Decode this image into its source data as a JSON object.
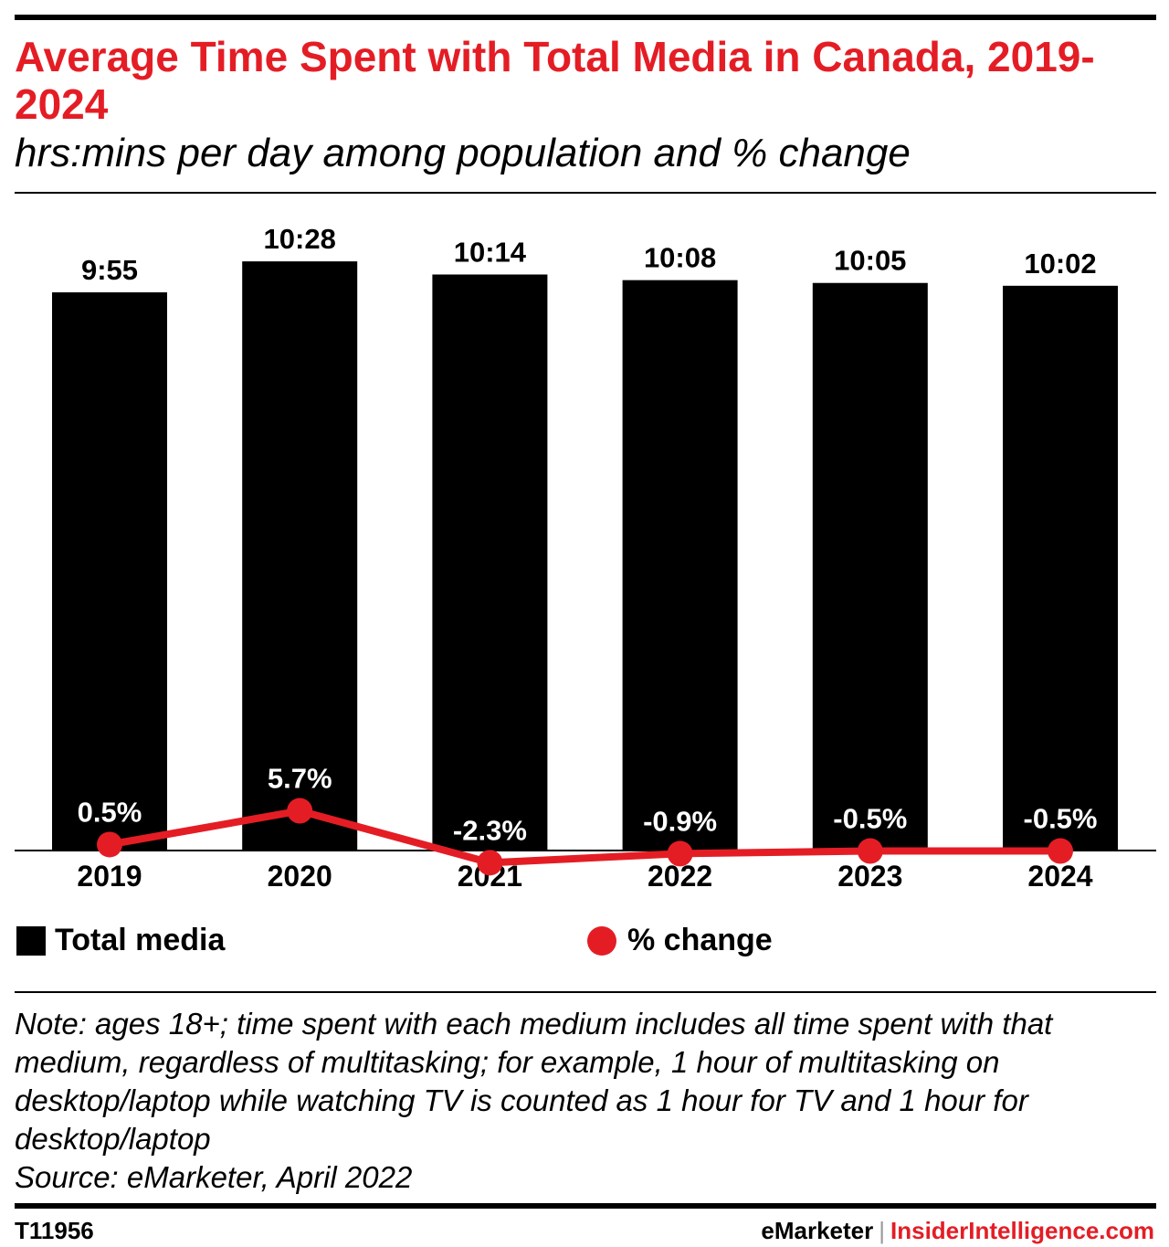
{
  "title": "Average Time Spent with Total Media in Canada, 2019-2024",
  "subtitle": "hrs:mins per day among population and % change",
  "legend": {
    "bar_label": "Total media",
    "line_label": "% change"
  },
  "note": "Note: ages 18+; time spent with each medium includes all time spent with that medium, regardless of multitasking; for example, 1 hour of multitasking on desktop/laptop while watching TV is counted as 1 hour for TV and 1 hour for desktop/laptop",
  "source": "Source: eMarketer, April 2022",
  "footer": {
    "chart_id": "T11956",
    "brand_left": "eMarketer",
    "separator": "|",
    "brand_right": "InsiderIntelligence.com"
  },
  "colors": {
    "bar": "#000000",
    "line": "#e41d25",
    "title": "#e41d25"
  },
  "chart_data": {
    "type": "bar",
    "categories": [
      "2019",
      "2020",
      "2021",
      "2022",
      "2023",
      "2024"
    ],
    "series": [
      {
        "name": "Total media",
        "type": "bar",
        "values_minutes": [
          595,
          628,
          614,
          608,
          605,
          602
        ],
        "labels": [
          "9:55",
          "10:28",
          "10:14",
          "10:08",
          "10:05",
          "10:02"
        ]
      },
      {
        "name": "% change",
        "type": "line",
        "values": [
          0.5,
          5.7,
          -2.3,
          -0.9,
          -0.5,
          -0.5
        ],
        "labels": [
          "0.5%",
          "5.7%",
          "-2.3%",
          "-0.9%",
          "-0.5%",
          "-0.5%"
        ]
      }
    ],
    "legend_position": "bottom",
    "grid": false
  }
}
